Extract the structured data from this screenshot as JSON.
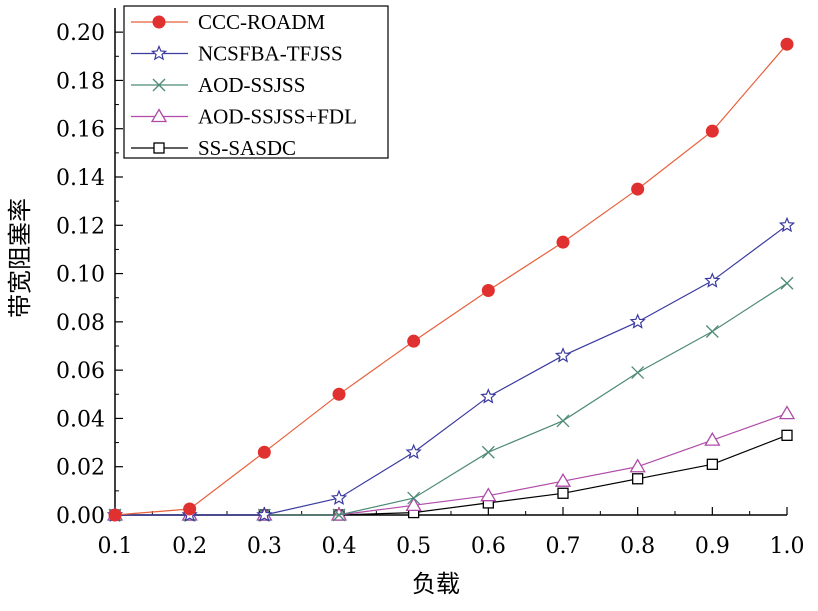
{
  "chart_data": {
    "type": "line",
    "x": [
      0.1,
      0.2,
      0.3,
      0.4,
      0.5,
      0.6,
      0.7,
      0.8,
      0.9,
      1.0
    ],
    "x_tick_labels": [
      "0.1",
      "0.2",
      "0.3",
      "0.4",
      "0.5",
      "0.6",
      "0.7",
      "0.8",
      "0.9",
      "1.0"
    ],
    "y_ticks": [
      0.0,
      0.02,
      0.04,
      0.06,
      0.08,
      0.1,
      0.12,
      0.14,
      0.16,
      0.18,
      0.2
    ],
    "y_tick_labels": [
      "0.00",
      "0.02",
      "0.04",
      "0.06",
      "0.08",
      "0.10",
      "0.12",
      "0.14",
      "0.16",
      "0.18",
      "0.20"
    ],
    "xlim": [
      0.1,
      1.0
    ],
    "ylim": [
      0,
      0.21
    ],
    "xlabel": "负载",
    "ylabel": "带宽阻塞率",
    "grid": false,
    "legend_position": "top-left",
    "series": [
      {
        "name": "CCC-ROADM",
        "marker": "filled-circle",
        "line_color": "#e8603c",
        "marker_color": "#e03030",
        "values": [
          0.0,
          0.0025,
          0.026,
          0.05,
          0.072,
          0.093,
          0.113,
          0.135,
          0.159,
          0.195
        ]
      },
      {
        "name": "NCSFBA-TFJSS",
        "marker": "star",
        "line_color": "#3a3aa0",
        "marker_color": "#3a3aa0",
        "values": [
          0.0,
          0.0,
          0.0,
          0.007,
          0.026,
          0.049,
          0.066,
          0.08,
          0.097,
          0.12
        ]
      },
      {
        "name": "AOD-SSJSS",
        "marker": "x",
        "line_color": "#4e8a78",
        "marker_color": "#4e8a78",
        "values": [
          0.0,
          0.0,
          0.0,
          0.0,
          0.007,
          0.026,
          0.039,
          0.059,
          0.076,
          0.096
        ]
      },
      {
        "name": "AOD-SSJSS+FDL",
        "marker": "triangle",
        "line_color": "#b04aa8",
        "marker_color": "#b04aa8",
        "values": [
          0.0,
          0.0,
          0.0,
          0.0,
          0.004,
          0.008,
          0.014,
          0.02,
          0.031,
          0.042
        ]
      },
      {
        "name": "SS-SASDC",
        "marker": "square",
        "line_color": "#000000",
        "marker_color": "#000000",
        "values": [
          0.0,
          0.0,
          0.0,
          0.0,
          0.001,
          0.005,
          0.009,
          0.015,
          0.021,
          0.033
        ]
      }
    ]
  }
}
